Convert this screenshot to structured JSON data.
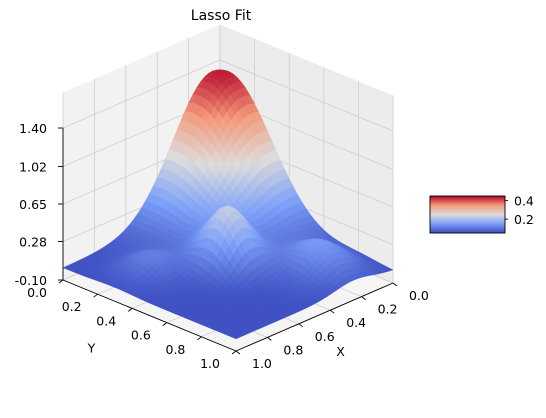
{
  "chart_data": {
    "type": "surface3d",
    "title": "Lasso Fit",
    "xlabel": "X",
    "ylabel": "Y",
    "zlabel": "",
    "x_ticks": [
      "0.0",
      "0.2",
      "0.4",
      "0.6",
      "0.8",
      "1.0"
    ],
    "y_ticks": [
      "0.0",
      "0.2",
      "0.4",
      "0.6",
      "0.8",
      "1.0"
    ],
    "z_ticks": [
      "-0.10",
      "0.28",
      "0.65",
      "1.02",
      "1.40"
    ],
    "xlim": [
      0,
      1
    ],
    "ylim": [
      0,
      1
    ],
    "zlim": [
      -0.1,
      1.4
    ],
    "view": {
      "elev_deg": 30,
      "azim_deg": 45
    },
    "colormap": "coolwarm",
    "colorbar": {
      "ticks": [
        "0.2",
        "0.4"
      ],
      "range": [
        0.05,
        0.45
      ]
    },
    "surface_peaks": [
      {
        "x": 0.05,
        "y": 0.05,
        "height": 1.33,
        "width": 0.25
      },
      {
        "x": 0.5,
        "y": 0.5,
        "height": 0.55,
        "width": 0.1
      },
      {
        "x": 0.25,
        "y": 0.8,
        "height": 0.3,
        "width": 0.12
      },
      {
        "x": 0.78,
        "y": 0.3,
        "height": 0.18,
        "width": 0.1
      }
    ],
    "surface_base": 0.02,
    "grid": true,
    "pane_color": "#f2f2f2",
    "grid_color": "#cfcfcf"
  }
}
